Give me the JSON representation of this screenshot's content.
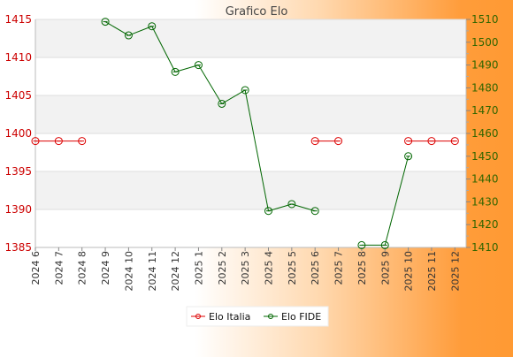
{
  "chart_data": {
    "type": "line",
    "title": "Grafico Elo",
    "categories": [
      "2024 6",
      "2024 7",
      "2024 8",
      "2024 9",
      "2024 10",
      "2024 11",
      "2024 12",
      "2025 1",
      "2025 2",
      "2025 3",
      "2025 4",
      "2025 5",
      "2025 6",
      "2025 7",
      "2025 8",
      "2025 9",
      "2025 10",
      "2025 11",
      "2025 12"
    ],
    "left_axis": {
      "ylim": [
        1385,
        1415
      ],
      "ticks": [
        1385,
        1390,
        1395,
        1400,
        1405,
        1410,
        1415
      ],
      "color": "#cc0000"
    },
    "right_axis": {
      "ylim": [
        1410,
        1510
      ],
      "ticks": [
        1410,
        1420,
        1430,
        1440,
        1450,
        1460,
        1470,
        1480,
        1490,
        1500,
        1510
      ],
      "color": "#336600"
    },
    "grid": true,
    "legend_placement": "bottom-center",
    "series": [
      {
        "name": "Elo Italia",
        "axis": "left",
        "color": "#dd0000",
        "values": [
          1399,
          1399,
          1399,
          null,
          null,
          null,
          null,
          null,
          null,
          null,
          null,
          null,
          1399,
          1399,
          null,
          null,
          1399,
          1399,
          1399
        ]
      },
      {
        "name": "Elo FIDE",
        "axis": "right",
        "color": "#006600",
        "values": [
          null,
          null,
          null,
          1509,
          1503,
          1507,
          1487,
          1490,
          1473,
          1479,
          1426,
          1429,
          1426,
          null,
          1411,
          1411,
          1450,
          null,
          null
        ]
      }
    ]
  }
}
